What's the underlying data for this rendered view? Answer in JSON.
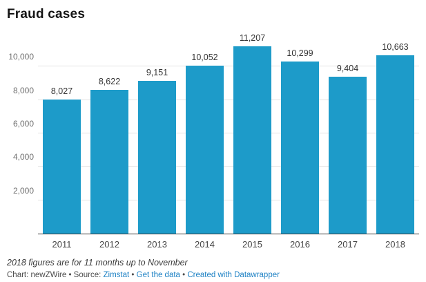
{
  "title": "Fraud cases",
  "colors": {
    "bar": "#1d9bc9",
    "link": "#1d81c4",
    "grid": "#e3e3e3",
    "axis": "#333333"
  },
  "chart_data": {
    "type": "bar",
    "title": "Fraud cases",
    "categories": [
      "2011",
      "2012",
      "2013",
      "2014",
      "2015",
      "2016",
      "2017",
      "2018"
    ],
    "values": [
      8027,
      8622,
      9151,
      10052,
      11207,
      10299,
      9404,
      10663
    ],
    "value_labels": [
      "8,027",
      "8,622",
      "9,151",
      "10,052",
      "11,207",
      "10,299",
      "9,404",
      "10,663"
    ],
    "xlabel": "",
    "ylabel": "",
    "ylim": [
      0,
      11500
    ],
    "yticks": [
      2000,
      4000,
      6000,
      8000,
      10000
    ],
    "ytick_labels": [
      "2,000",
      "4,000",
      "6,000",
      "8,000",
      "10,000"
    ],
    "grid": true,
    "legend_position": "none"
  },
  "footer": {
    "note": "2018 figures are for 11 months up to November",
    "credit_prefix": "Chart: newZWire • Source: ",
    "source_link": "Zimstat",
    "sep1": " • ",
    "get_data_link": "Get the data",
    "sep2": " • ",
    "created_link": "Created with Datawrapper"
  }
}
